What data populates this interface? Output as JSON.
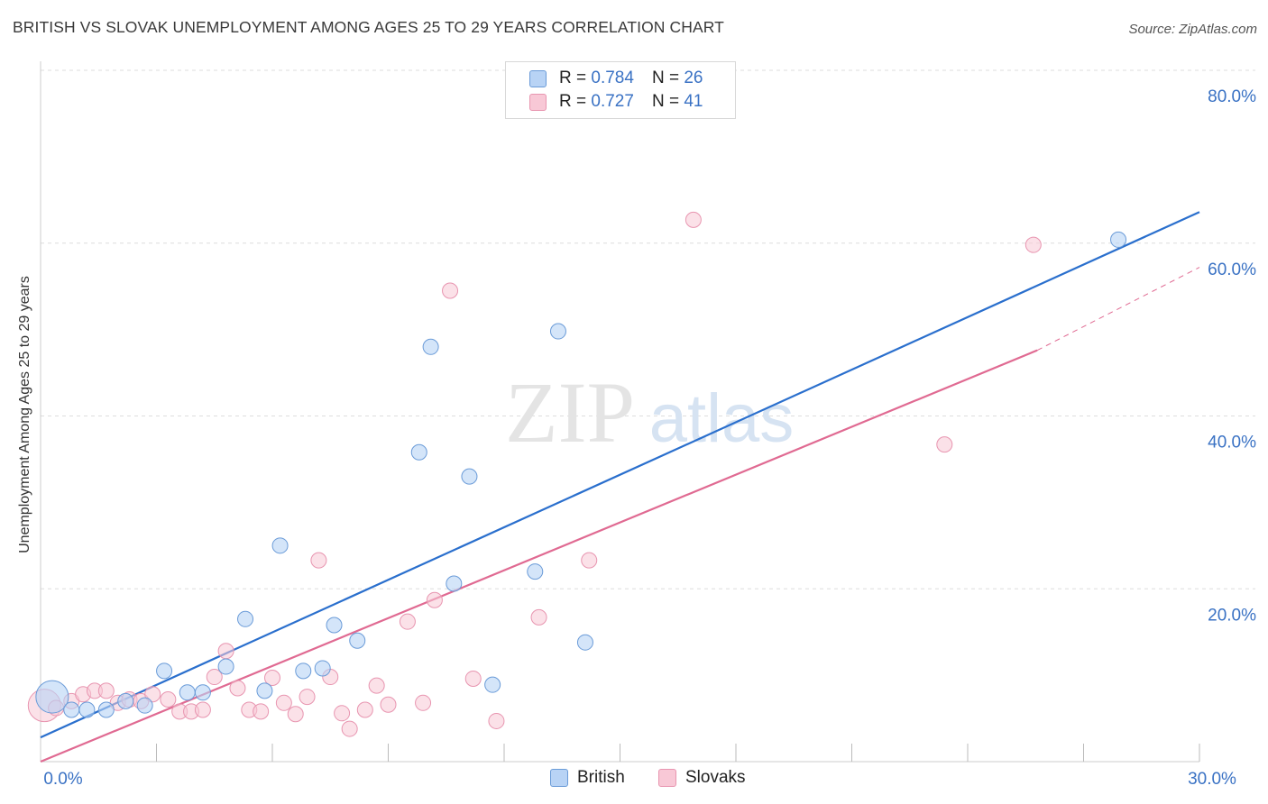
{
  "title": "BRITISH VS SLOVAK UNEMPLOYMENT AMONG AGES 25 TO 29 YEARS CORRELATION CHART",
  "source": "Source: ZipAtlas.com",
  "watermark": {
    "zip": "ZIP",
    "atlas": "atlas"
  },
  "legend": {
    "british": {
      "r_label": "R =",
      "r_value": "0.784",
      "n_label": "N =",
      "n_value": "26"
    },
    "slovaks": {
      "r_label": "R =",
      "r_value": "0.727",
      "n_label": "N =",
      "n_value": "41"
    }
  },
  "colors": {
    "british_fill": "#b8d3f5",
    "british_stroke": "#6a9bd8",
    "british_line": "#2a6fcd",
    "slovaks_fill": "#f8c8d6",
    "slovaks_stroke": "#e895b0",
    "slovaks_line": "#e06a92",
    "grid": "#dddddd",
    "tick_label": "#3a72c4"
  },
  "chart_data": {
    "type": "scatter",
    "title": "BRITISH VS SLOVAK UNEMPLOYMENT AMONG AGES 25 TO 29 YEARS CORRELATION CHART",
    "xlabel": "",
    "ylabel": "Unemployment Among Ages 25 to 29 years",
    "xlim": [
      0,
      30
    ],
    "ylim": [
      0,
      80
    ],
    "x_tick_labels": [
      {
        "value": 0,
        "label": "0.0%"
      },
      {
        "value": 30,
        "label": "30.0%"
      }
    ],
    "x_minor_ticks": [
      3,
      6,
      9,
      12,
      15,
      18,
      21,
      24,
      27,
      30
    ],
    "y_ticks": [
      {
        "value": 20,
        "label": "20.0%"
      },
      {
        "value": 40,
        "label": "40.0%"
      },
      {
        "value": 60,
        "label": "60.0%"
      },
      {
        "value": 80,
        "label": "80.0%"
      }
    ],
    "grid": true,
    "legend_position": "top-center",
    "series": [
      {
        "name": "British",
        "points": [
          {
            "x": 0.3,
            "y": 7.5,
            "big": true
          },
          {
            "x": 0.8,
            "y": 6.0
          },
          {
            "x": 1.2,
            "y": 6.0
          },
          {
            "x": 1.7,
            "y": 6.0
          },
          {
            "x": 2.2,
            "y": 7.0
          },
          {
            "x": 2.7,
            "y": 6.5
          },
          {
            "x": 3.2,
            "y": 10.5
          },
          {
            "x": 3.8,
            "y": 8.0
          },
          {
            "x": 4.2,
            "y": 8.0
          },
          {
            "x": 4.8,
            "y": 11.0
          },
          {
            "x": 5.3,
            "y": 16.5
          },
          {
            "x": 5.8,
            "y": 8.2
          },
          {
            "x": 6.2,
            "y": 25.0
          },
          {
            "x": 6.8,
            "y": 10.5
          },
          {
            "x": 7.3,
            "y": 10.8
          },
          {
            "x": 7.6,
            "y": 15.8
          },
          {
            "x": 8.2,
            "y": 14.0
          },
          {
            "x": 9.8,
            "y": 35.8
          },
          {
            "x": 10.1,
            "y": 48.0
          },
          {
            "x": 10.7,
            "y": 20.6
          },
          {
            "x": 11.1,
            "y": 33.0
          },
          {
            "x": 11.7,
            "y": 8.9
          },
          {
            "x": 12.8,
            "y": 22.0
          },
          {
            "x": 13.4,
            "y": 49.8
          },
          {
            "x": 14.1,
            "y": 13.8
          },
          {
            "x": 27.9,
            "y": 60.4
          }
        ],
        "trend": {
          "x0": 0,
          "y0": 2.8,
          "x1": 30,
          "y1": 63.6
        }
      },
      {
        "name": "Slovaks",
        "points": [
          {
            "x": 0.1,
            "y": 6.5,
            "big": true
          },
          {
            "x": 0.4,
            "y": 6.2
          },
          {
            "x": 0.8,
            "y": 7.0
          },
          {
            "x": 1.1,
            "y": 7.8
          },
          {
            "x": 1.4,
            "y": 8.2
          },
          {
            "x": 1.7,
            "y": 8.2
          },
          {
            "x": 2.0,
            "y": 6.8
          },
          {
            "x": 2.3,
            "y": 7.2
          },
          {
            "x": 2.6,
            "y": 7.0
          },
          {
            "x": 2.9,
            "y": 7.8
          },
          {
            "x": 3.3,
            "y": 7.2
          },
          {
            "x": 3.6,
            "y": 5.8
          },
          {
            "x": 3.9,
            "y": 5.8
          },
          {
            "x": 4.2,
            "y": 6.0
          },
          {
            "x": 4.5,
            "y": 9.8
          },
          {
            "x": 4.8,
            "y": 12.8
          },
          {
            "x": 5.1,
            "y": 8.5
          },
          {
            "x": 5.4,
            "y": 6.0
          },
          {
            "x": 5.7,
            "y": 5.8
          },
          {
            "x": 6.0,
            "y": 9.7
          },
          {
            "x": 6.3,
            "y": 6.8
          },
          {
            "x": 6.6,
            "y": 5.5
          },
          {
            "x": 6.9,
            "y": 7.5
          },
          {
            "x": 7.2,
            "y": 23.3
          },
          {
            "x": 7.5,
            "y": 9.8
          },
          {
            "x": 7.8,
            "y": 5.6
          },
          {
            "x": 8.0,
            "y": 3.8
          },
          {
            "x": 8.4,
            "y": 6.0
          },
          {
            "x": 8.7,
            "y": 8.8
          },
          {
            "x": 9.0,
            "y": 6.6
          },
          {
            "x": 9.5,
            "y": 16.2
          },
          {
            "x": 9.9,
            "y": 6.8
          },
          {
            "x": 10.2,
            "y": 18.7
          },
          {
            "x": 10.6,
            "y": 54.5
          },
          {
            "x": 11.2,
            "y": 9.6
          },
          {
            "x": 11.8,
            "y": 4.7
          },
          {
            "x": 12.9,
            "y": 16.7
          },
          {
            "x": 14.2,
            "y": 23.3
          },
          {
            "x": 16.9,
            "y": 62.7
          },
          {
            "x": 23.4,
            "y": 36.7
          },
          {
            "x": 25.7,
            "y": 59.8
          }
        ],
        "trend": {
          "x0": 0,
          "y0": 0,
          "x1": 25.8,
          "y1": 47.6
        },
        "trend_dashed": {
          "x0": 25.8,
          "y0": 47.6,
          "x1": 30,
          "y1": 57.2
        }
      }
    ]
  },
  "bottom_legend": {
    "british_label": "British",
    "slovaks_label": "Slovaks"
  }
}
